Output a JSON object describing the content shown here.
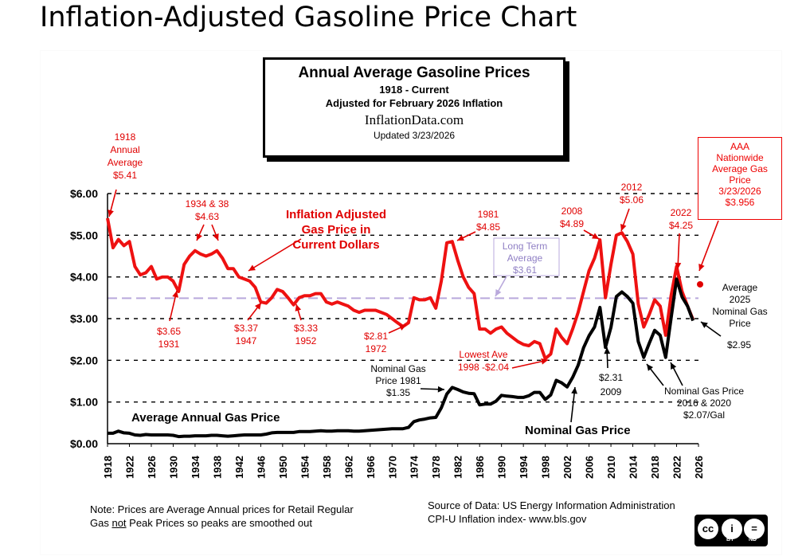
{
  "page": {
    "title": "Inflation-Adjusted Gasoline Price Chart"
  },
  "title_box": {
    "line1": "Annual Average Gasoline Prices",
    "line2": "1918 - Current",
    "line3": "Adjusted for February 2026 Inflation",
    "line4": "InflationData.com",
    "line5": "Updated  3/23/2026"
  },
  "aaa_box": [
    "AAA",
    "Nationwide",
    "Average Gas",
    "Price",
    "3/23/2026",
    "$3.956"
  ],
  "colors": {
    "adjusted": "#ee1111",
    "nominal": "#000000",
    "average_line": "#b9a9dc",
    "annotation_red": "#e00000"
  },
  "chart_data": {
    "type": "line",
    "title": "Annual Average Gasoline Prices",
    "subtitle": "1918 - Current, Adjusted for February 2026 Inflation",
    "xlabel": "",
    "ylabel": "",
    "xlim": [
      1918,
      2026
    ],
    "ylim": [
      0,
      6
    ],
    "grid": "dashed horizontal",
    "y_ticks": [
      0,
      1,
      2,
      3,
      4,
      5,
      6
    ],
    "y_tick_labels": [
      "$0.00",
      "$1.00",
      "$2.00",
      "$3.00",
      "$4.00",
      "$5.00",
      "$6.00"
    ],
    "x_ticks": [
      1918,
      1922,
      1926,
      1930,
      1934,
      1938,
      1942,
      1946,
      1950,
      1954,
      1958,
      1962,
      1966,
      1970,
      1974,
      1978,
      1982,
      1986,
      1990,
      1994,
      1998,
      2002,
      2006,
      2010,
      2014,
      2018,
      2022,
      2026
    ],
    "series": [
      {
        "name": "Inflation Adjusted Gas Price in Current Dollars",
        "color": "#ee1111",
        "x": [
          1918,
          1919,
          1920,
          1921,
          1922,
          1923,
          1924,
          1925,
          1926,
          1927,
          1928,
          1929,
          1930,
          1931,
          1932,
          1933,
          1934,
          1935,
          1936,
          1937,
          1938,
          1939,
          1940,
          1941,
          1942,
          1943,
          1944,
          1945,
          1946,
          1947,
          1948,
          1949,
          1950,
          1951,
          1952,
          1953,
          1954,
          1955,
          1956,
          1957,
          1958,
          1959,
          1960,
          1961,
          1962,
          1963,
          1964,
          1965,
          1966,
          1967,
          1968,
          1969,
          1970,
          1971,
          1972,
          1973,
          1974,
          1975,
          1976,
          1977,
          1978,
          1979,
          1980,
          1981,
          1982,
          1983,
          1984,
          1985,
          1986,
          1987,
          1988,
          1989,
          1990,
          1991,
          1992,
          1993,
          1994,
          1995,
          1996,
          1997,
          1998,
          1999,
          2000,
          2001,
          2002,
          2003,
          2004,
          2005,
          2006,
          2007,
          2008,
          2009,
          2010,
          2011,
          2012,
          2013,
          2014,
          2015,
          2016,
          2017,
          2018,
          2019,
          2020,
          2021,
          2022,
          2023,
          2024,
          2025
        ],
        "values": [
          5.41,
          4.7,
          4.9,
          4.75,
          4.85,
          4.25,
          4.05,
          4.1,
          4.25,
          3.95,
          4.0,
          4.0,
          3.9,
          3.65,
          4.3,
          4.5,
          4.63,
          4.55,
          4.5,
          4.55,
          4.63,
          4.45,
          4.2,
          4.2,
          4.0,
          3.95,
          3.9,
          3.75,
          3.4,
          3.37,
          3.5,
          3.7,
          3.65,
          3.5,
          3.33,
          3.5,
          3.55,
          3.55,
          3.6,
          3.6,
          3.4,
          3.35,
          3.4,
          3.35,
          3.3,
          3.2,
          3.15,
          3.2,
          3.2,
          3.2,
          3.15,
          3.1,
          3.0,
          2.9,
          2.81,
          2.9,
          3.5,
          3.45,
          3.45,
          3.5,
          3.25,
          3.9,
          4.82,
          4.85,
          4.4,
          4.0,
          3.75,
          3.6,
          2.75,
          2.75,
          2.65,
          2.75,
          2.8,
          2.65,
          2.55,
          2.45,
          2.38,
          2.35,
          2.45,
          2.4,
          2.04,
          2.15,
          2.75,
          2.55,
          2.4,
          2.75,
          3.15,
          3.65,
          4.15,
          4.45,
          4.89,
          3.5,
          4.3,
          5.0,
          5.06,
          4.85,
          4.55,
          3.35,
          2.8,
          3.1,
          3.45,
          3.3,
          2.6,
          3.55,
          4.25,
          3.65,
          3.3,
          2.98
        ]
      },
      {
        "name": "Nominal Gas Price",
        "color": "#000000",
        "x": [
          1918,
          1919,
          1920,
          1921,
          1922,
          1923,
          1924,
          1925,
          1926,
          1927,
          1928,
          1929,
          1930,
          1931,
          1932,
          1933,
          1934,
          1935,
          1936,
          1937,
          1938,
          1939,
          1940,
          1941,
          1942,
          1943,
          1944,
          1945,
          1946,
          1947,
          1948,
          1949,
          1950,
          1951,
          1952,
          1953,
          1954,
          1955,
          1956,
          1957,
          1958,
          1959,
          1960,
          1961,
          1962,
          1963,
          1964,
          1965,
          1966,
          1967,
          1968,
          1969,
          1970,
          1971,
          1972,
          1973,
          1974,
          1975,
          1976,
          1977,
          1978,
          1979,
          1980,
          1981,
          1982,
          1983,
          1984,
          1985,
          1986,
          1987,
          1988,
          1989,
          1990,
          1991,
          1992,
          1993,
          1994,
          1995,
          1996,
          1997,
          1998,
          1999,
          2000,
          2001,
          2002,
          2003,
          2004,
          2005,
          2006,
          2007,
          2008,
          2009,
          2010,
          2011,
          2012,
          2013,
          2014,
          2015,
          2016,
          2017,
          2018,
          2019,
          2020,
          2021,
          2022,
          2023,
          2024,
          2025
        ],
        "values": [
          0.25,
          0.25,
          0.3,
          0.26,
          0.25,
          0.21,
          0.2,
          0.22,
          0.21,
          0.21,
          0.21,
          0.21,
          0.2,
          0.17,
          0.18,
          0.18,
          0.19,
          0.19,
          0.19,
          0.2,
          0.2,
          0.19,
          0.18,
          0.19,
          0.2,
          0.21,
          0.21,
          0.21,
          0.21,
          0.23,
          0.26,
          0.27,
          0.27,
          0.27,
          0.27,
          0.29,
          0.29,
          0.29,
          0.3,
          0.31,
          0.3,
          0.3,
          0.31,
          0.31,
          0.31,
          0.3,
          0.3,
          0.31,
          0.32,
          0.33,
          0.34,
          0.35,
          0.36,
          0.36,
          0.36,
          0.39,
          0.53,
          0.57,
          0.59,
          0.62,
          0.63,
          0.86,
          1.19,
          1.35,
          1.3,
          1.24,
          1.21,
          1.2,
          0.93,
          0.95,
          0.95,
          1.02,
          1.16,
          1.14,
          1.13,
          1.11,
          1.11,
          1.15,
          1.23,
          1.23,
          1.06,
          1.17,
          1.52,
          1.46,
          1.36,
          1.59,
          1.88,
          2.3,
          2.59,
          2.8,
          3.27,
          2.31,
          2.79,
          3.53,
          3.64,
          3.53,
          3.37,
          2.45,
          2.07,
          2.41,
          2.72,
          2.6,
          2.07,
          3.01,
          3.95,
          3.52,
          3.3,
          2.95
        ]
      }
    ],
    "long_term_average": 3.61,
    "aaa_point": {
      "x": 2026,
      "value": 3.956
    },
    "series_labels": {
      "adjusted": [
        "Inflation Adjusted",
        "Gas Price in",
        "Current Dollars"
      ],
      "average_annual": "Average Annual Gas Price",
      "nominal": "Nominal Gas Price"
    },
    "annotations": [
      {
        "id": "a1918",
        "lines": [
          "1918",
          "Annual",
          "Average",
          "$5.41"
        ]
      },
      {
        "id": "a1934",
        "lines": [
          "1934  & 38",
          "$4.63"
        ]
      },
      {
        "id": "a1931",
        "lines": [
          "$3.65",
          "1931"
        ]
      },
      {
        "id": "a1947",
        "lines": [
          "$3.37",
          "1947"
        ]
      },
      {
        "id": "a1952",
        "lines": [
          "$3.33",
          "1952"
        ]
      },
      {
        "id": "a1972",
        "lines": [
          "$2.81",
          "1972"
        ]
      },
      {
        "id": "a1981",
        "lines": [
          "1981",
          "$4.85"
        ]
      },
      {
        "id": "a2008",
        "lines": [
          "2008",
          "$4.89"
        ]
      },
      {
        "id": "a2012",
        "lines": [
          "2012",
          "$5.06"
        ]
      },
      {
        "id": "a2022",
        "lines": [
          "2022",
          "$4.25"
        ]
      },
      {
        "id": "alow",
        "lines": [
          "Lowest  Ave",
          "1998 -$2.04"
        ]
      },
      {
        "id": "aavg",
        "lines": [
          "Long Term",
          "Average",
          "$3.61"
        ]
      },
      {
        "id": "anom1981",
        "lines": [
          "Nominal  Gas",
          "Price  1981",
          "$1.35"
        ]
      },
      {
        "id": "a2009",
        "lines": [
          "$2.31",
          "2009"
        ]
      },
      {
        "id": "a2016",
        "lines": [
          "Nominal  Gas Price",
          "2016  & 2020",
          "$2.07/Gal"
        ]
      },
      {
        "id": "a2025",
        "lines": [
          "Average",
          "2025",
          "Nominal  Gas",
          "Price"
        ]
      },
      {
        "id": "a295",
        "lines": [
          "$2.95"
        ]
      }
    ]
  },
  "footer": {
    "note_line1": "Note: Prices are Average  Annual prices for Retail Regular",
    "note_gas": "Gas ",
    "note_not": "not",
    "note_rest": " Peak Prices so peaks are smoothed out",
    "source_line1": "Source of Data:  US Energy Information Administration",
    "source_line2": "CPI-U Inflation index-    www.bls.gov"
  },
  "license": {
    "cc": "cc",
    "by_symbol": "i",
    "nd_symbol": "=",
    "by": "BY",
    "nd": "ND"
  }
}
